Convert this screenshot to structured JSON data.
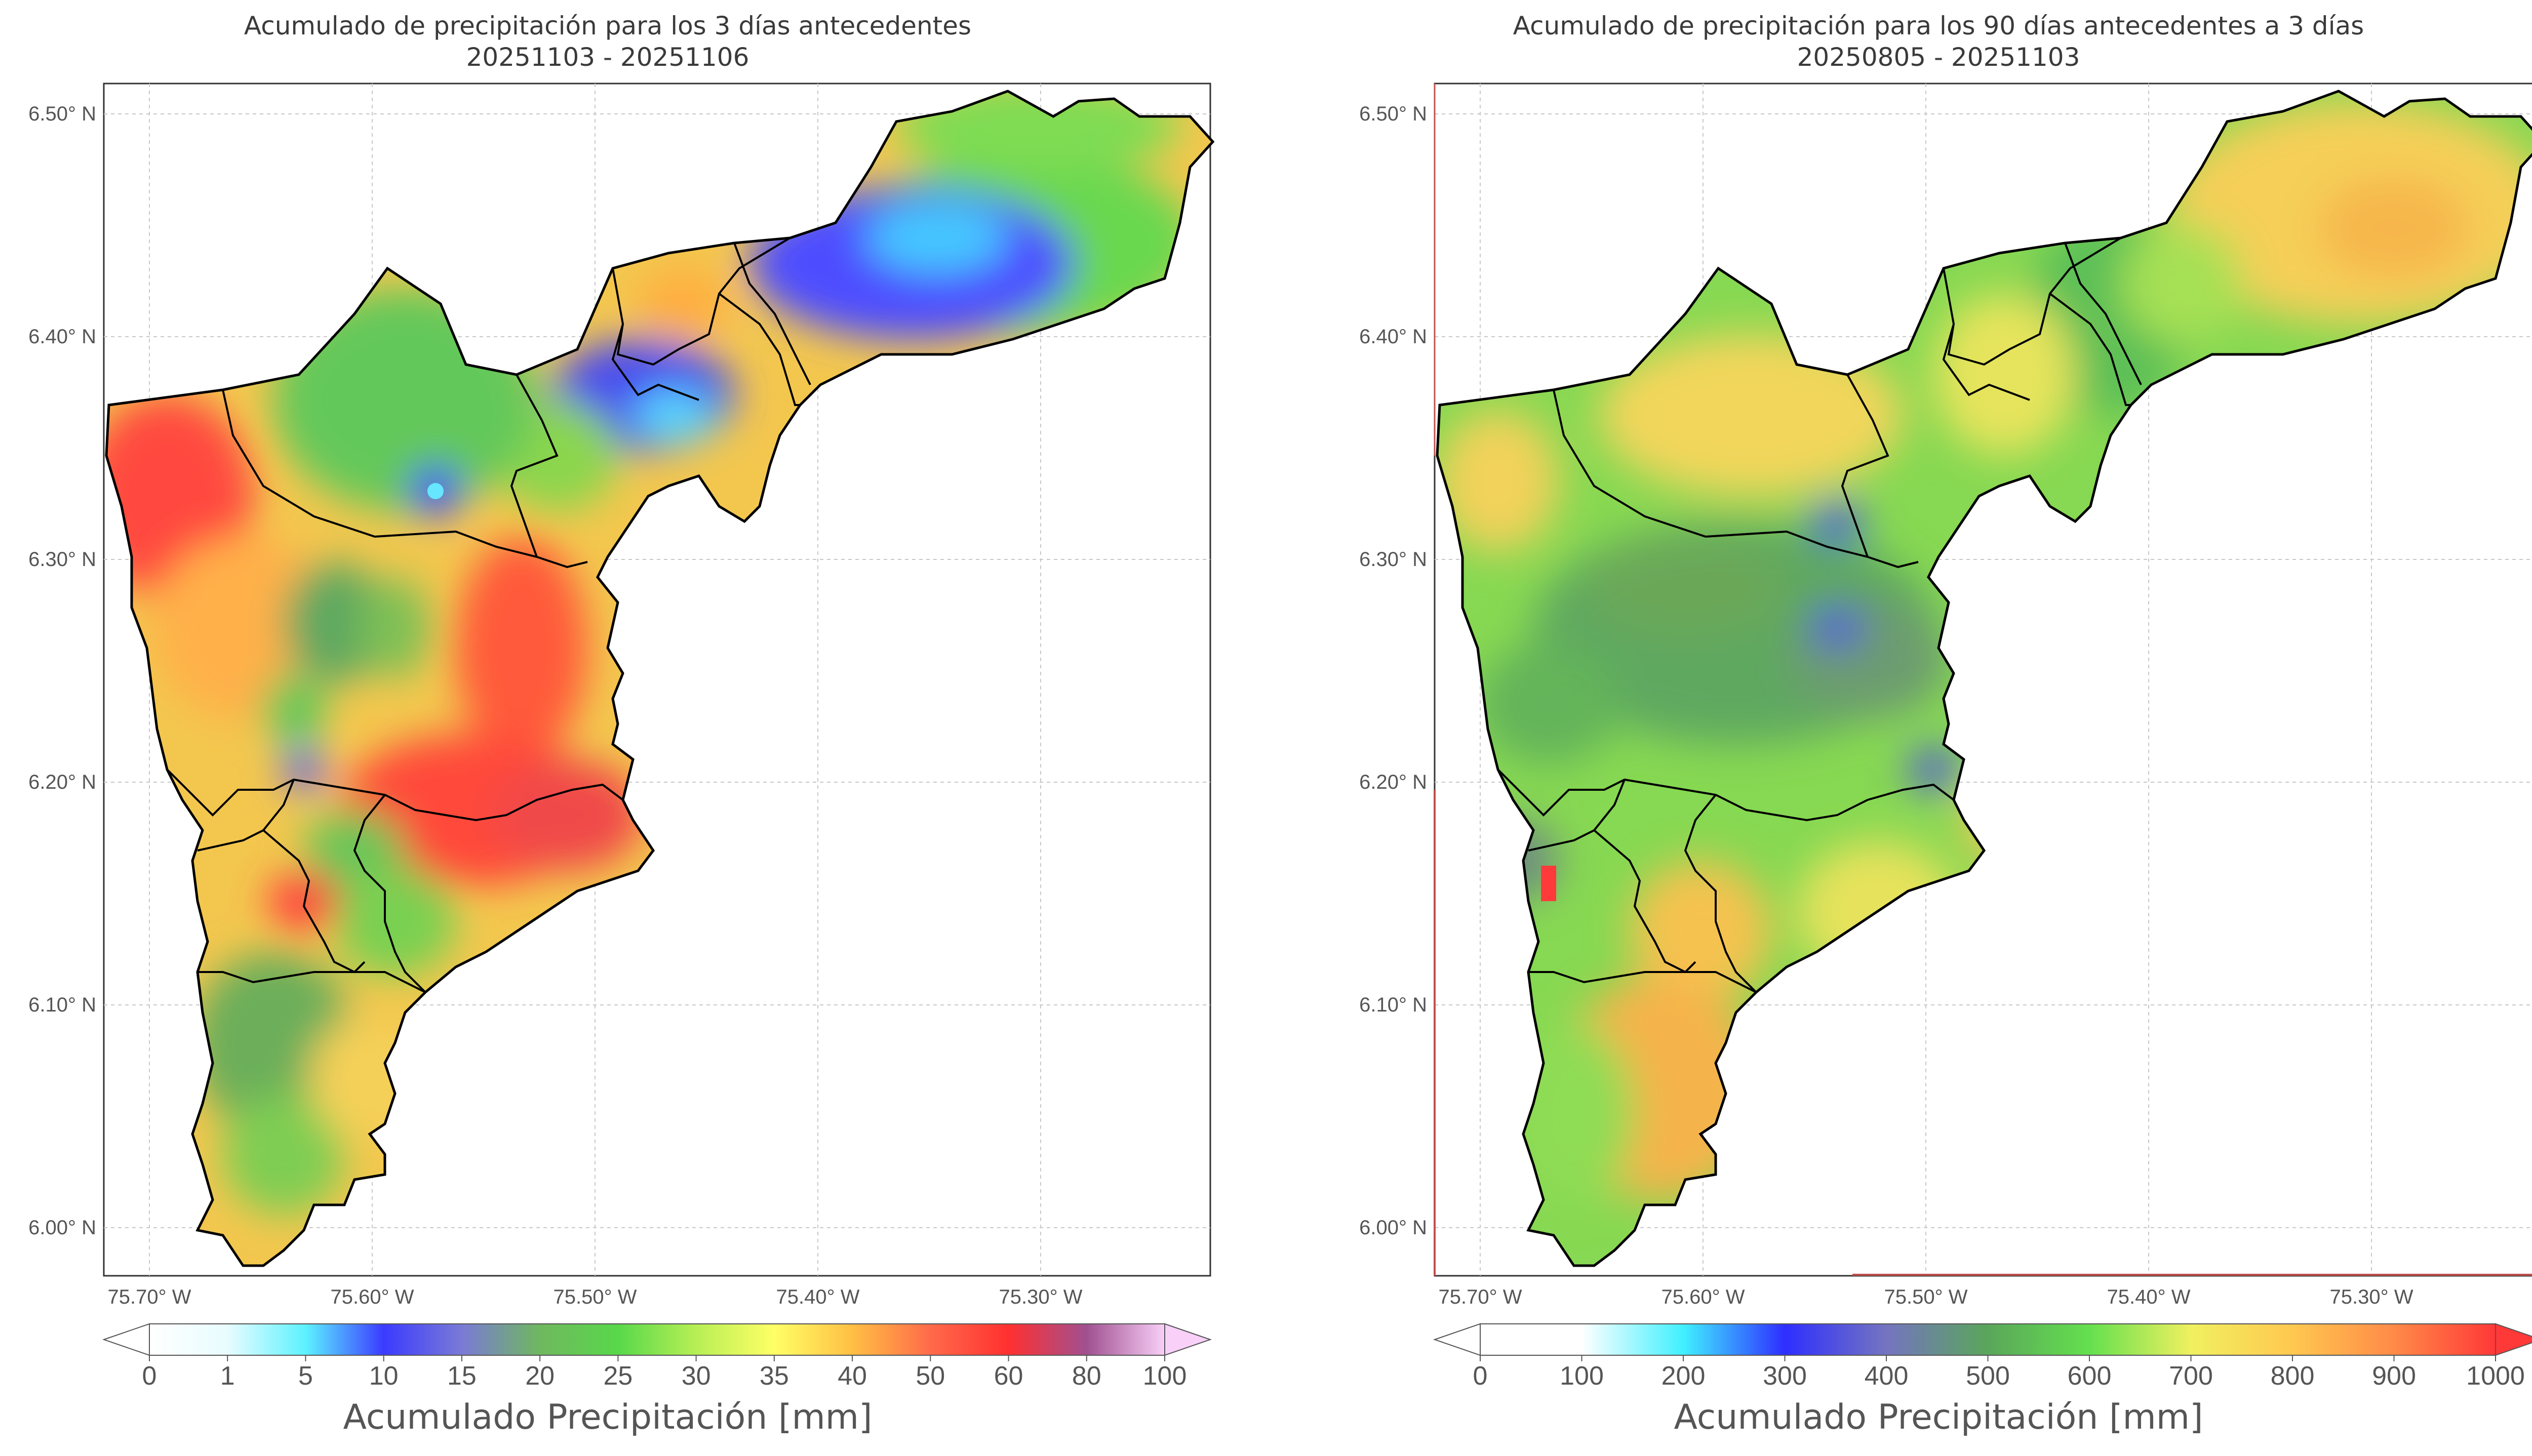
{
  "panels": [
    {
      "id": "left",
      "title_line1": "Acumulado de precipitación para los 3 días antecedentes",
      "title_line2": "20251103 - 20251106",
      "lat_ticks": [
        "6.50° N",
        "6.40° N",
        "6.30° N",
        "6.20° N",
        "6.10° N",
        "6.00° N"
      ],
      "lon_ticks": [
        "75.70° W",
        "75.60° W",
        "75.50° W",
        "75.40° W",
        "75.30° W"
      ],
      "colorbar": {
        "label": "Acumulado Precipitación [mm]",
        "ticks": [
          "0",
          "1",
          "5",
          "10",
          "15",
          "20",
          "25",
          "30",
          "35",
          "40",
          "50",
          "60",
          "80",
          "100"
        ],
        "tick_values": [
          0,
          1,
          5,
          10,
          15,
          20,
          25,
          30,
          35,
          40,
          50,
          60,
          80,
          100
        ],
        "colors": [
          "#ffffff",
          "#e8fcff",
          "#5cf2ff",
          "#3b3bff",
          "#7a7ad6",
          "#6fb85f",
          "#58d84a",
          "#b7ef55",
          "#ffff66",
          "#ffbf44",
          "#ff6a4a",
          "#ff3030",
          "#a05090",
          "#f8d0f8"
        ]
      }
    },
    {
      "id": "right",
      "title_line1": "Acumulado de precipitación para los 90 días antecedentes a 3 días",
      "title_line2": "20250805 - 20251103",
      "lat_ticks": [
        "6.50° N",
        "6.40° N",
        "6.30° N",
        "6.20° N",
        "6.10° N",
        "6.00° N"
      ],
      "lon_ticks": [
        "75.70° W",
        "75.60° W",
        "75.50° W",
        "75.40° W",
        "75.30° W"
      ],
      "colorbar": {
        "label": "Acumulado Precipitación [mm]",
        "ticks": [
          "0",
          "100",
          "200",
          "300",
          "400",
          "500",
          "600",
          "700",
          "800",
          "900",
          "1000"
        ],
        "tick_values": [
          0,
          100,
          200,
          300,
          400,
          500,
          600,
          700,
          800,
          900,
          1000
        ],
        "colors": [
          "#ffffff",
          "#ffffff",
          "#40f0ff",
          "#2e2eff",
          "#7474c0",
          "#5aa65a",
          "#64e04e",
          "#f0f060",
          "#ffc850",
          "#ff8a48",
          "#ff3838"
        ]
      }
    }
  ],
  "colors": {
    "frame": "#333333",
    "grid": "#c8c8c8",
    "boundary": "#000000"
  }
}
